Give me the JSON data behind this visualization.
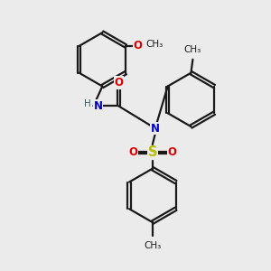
{
  "background_color": "#ebebeb",
  "figsize": [
    3.0,
    3.0
  ],
  "dpi": 100,
  "bond_color": "#1a1a1a",
  "N_color": "#0000cc",
  "O_color": "#dd0000",
  "S_color": "#bbbb00",
  "H_color": "#336666",
  "lw": 1.6,
  "fs": 8.5,
  "fs_small": 7.5,
  "ring_r": 0.3,
  "xlim": [
    0.0,
    3.0
  ],
  "ylim": [
    0.0,
    3.0
  ]
}
